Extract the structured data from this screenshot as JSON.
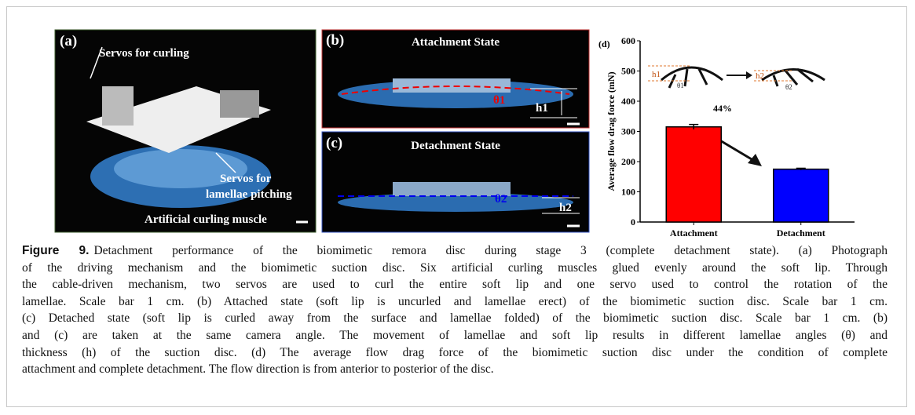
{
  "panel_a": {
    "label": "(a)",
    "callouts": [
      "Servos for curling",
      "Servos for",
      "lamellae pitching",
      "Artificial curling muscle"
    ]
  },
  "panel_b": {
    "label": "(b)",
    "title": "Attachment State",
    "angle": "θ1",
    "height": "h1"
  },
  "panel_c": {
    "label": "(c)",
    "title": "Detachment State",
    "angle": "θ2",
    "height": "h2"
  },
  "panel_d_schematic": {
    "labels": [
      "h1",
      "θ1",
      "h2",
      "θ2"
    ]
  },
  "chart_data": {
    "type": "bar",
    "label": "(d)",
    "y_label": "Average flow drag force (mN)",
    "categories": [
      "Attachment",
      "Detachment"
    ],
    "values": [
      315,
      175
    ],
    "errors": [
      8,
      3
    ],
    "colors": [
      "#ff0000",
      "#0000ff"
    ],
    "ylim": [
      0,
      600
    ],
    "yticks": [
      0,
      100,
      200,
      300,
      400,
      500,
      600
    ],
    "annotation": "44%"
  },
  "caption": {
    "label": "Figure 9.",
    "lines": [
      "Detachment performance of the biomimetic remora disc during stage 3 (complete detachment state). (a) Photograph",
      "of the driving mechanism and the biomimetic suction disc. Six artificial curling muscles glued evenly around the soft lip. Through",
      "the cable-driven mechanism, two servos are used to curl the entire soft lip and one servo used to control the rotation of the",
      "lamellae. Scale bar 1 cm. (b) Attached state (soft lip is uncurled and lamellae erect) of the biomimetic suction disc. Scale bar 1 cm.",
      "(c) Detached state (soft lip is curled away from the surface and lamellae folded) of the biomimetic suction disc. Scale bar 1 cm. (b)",
      "and (c) are taken at the same camera angle. The movement of lamellae and soft lip results in different lamellae angles (θ) and",
      "thickness (h) of the suction disc. (d) The average flow drag force of the biomimetic suction disc under the condition of complete",
      "attachment and complete detachment. The flow direction is from anterior to posterior of the disc."
    ]
  }
}
